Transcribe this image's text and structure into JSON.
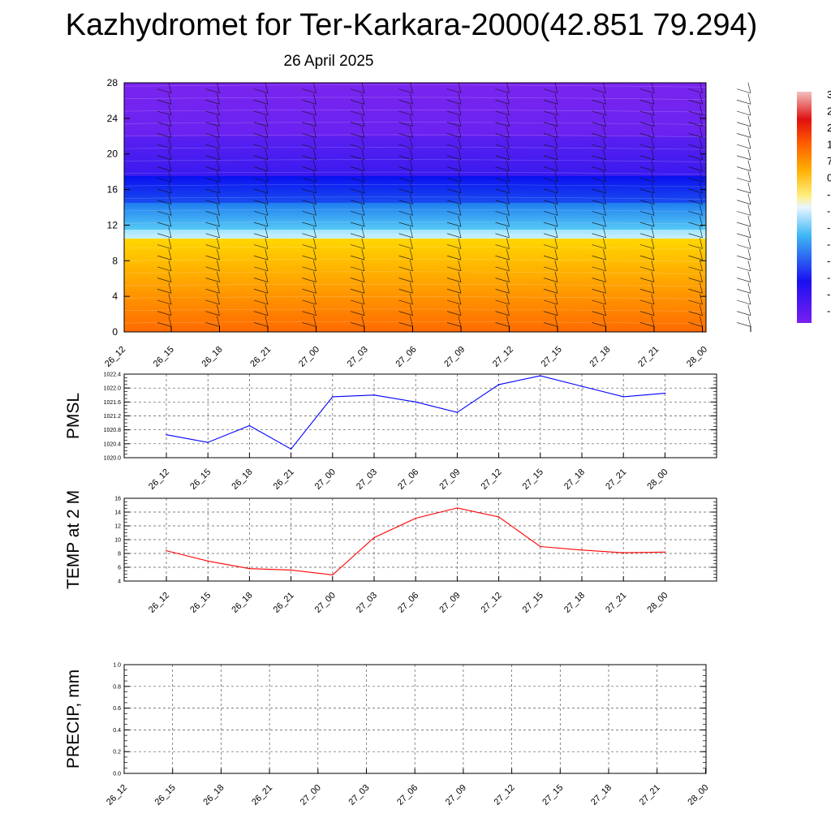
{
  "title": "Kazhydromet for Ter-Karkara-2000(42.851 79.294)",
  "subtitle": "26 April 2025",
  "colorbar_labels": [
    "3",
    "2",
    "2",
    "1",
    "7",
    "0",
    "-",
    "-",
    "-",
    "-",
    "-",
    "-",
    "-",
    "-"
  ],
  "chart_data": [
    {
      "type": "heatmap",
      "title": "",
      "xlabel": "",
      "ylabel": "",
      "x_ticks": [
        "26_12",
        "26_15",
        "26_18",
        "26_21",
        "27_00",
        "27_03",
        "27_06",
        "27_09",
        "27_12",
        "27_15",
        "27_18",
        "27_21",
        "28_00"
      ],
      "y_ticks": [
        0,
        4,
        8,
        12,
        16,
        20,
        24,
        28
      ],
      "ylim": [
        0,
        28
      ],
      "field_bands": [
        {
          "level_from": 0,
          "level_to": 10.5,
          "color_bottom": "#ff6a00",
          "color_top": "#ffd700"
        },
        {
          "level_from": 10.5,
          "level_to": 11.5,
          "color_bottom": "#c8f0ff",
          "color_top": "#a0e4ff"
        },
        {
          "level_from": 11.5,
          "level_to": 14.5,
          "color_bottom": "#55c8f5",
          "color_top": "#1f7df0"
        },
        {
          "level_from": 14.5,
          "level_to": 17.5,
          "color_bottom": "#1a4cf0",
          "color_top": "#0a10f0"
        },
        {
          "level_from": 17.5,
          "level_to": 22,
          "color_bottom": "#3a1af0",
          "color_top": "#5a1ff0"
        },
        {
          "level_from": 22,
          "level_to": 28,
          "color_bottom": "#6a22f0",
          "color_top": "#7a25ef"
        }
      ],
      "wind_barbs": true,
      "legend": "colorbar right"
    },
    {
      "type": "line",
      "title": "",
      "xlabel": "",
      "ylabel": "PMSL",
      "x": [
        "26_12",
        "26_15",
        "26_18",
        "26_21",
        "27_00",
        "27_03",
        "27_06",
        "27_09",
        "27_12",
        "27_15",
        "27_18",
        "27_21",
        "28_00"
      ],
      "series": [
        {
          "color": "#0000ff",
          "values": [
            1020.66,
            1020.44,
            1020.92,
            1020.25,
            1021.75,
            1021.8,
            1021.6,
            1021.3,
            1022.1,
            1022.35,
            1022.05,
            1021.75,
            1021.85
          ]
        }
      ],
      "y_ticks": [
        "1020.0",
        "1020.4",
        "1020.8",
        "1021.2",
        "1021.6",
        "1022.0",
        "1022.4"
      ],
      "ylim": [
        1020.0,
        1022.4
      ],
      "grid": true
    },
    {
      "type": "line",
      "title": "",
      "xlabel": "",
      "ylabel": "TEMP at 2 M",
      "x": [
        "26_12",
        "26_15",
        "26_18",
        "26_21",
        "27_00",
        "27_03",
        "27_06",
        "27_09",
        "27_12",
        "27_15",
        "27_18",
        "27_21",
        "28_00"
      ],
      "series": [
        {
          "color": "#ff0000",
          "values": [
            8.4,
            6.9,
            5.8,
            5.6,
            4.9,
            10.3,
            13.1,
            14.6,
            13.3,
            9.0,
            8.5,
            8.1,
            8.2
          ]
        }
      ],
      "y_ticks": [
        "4",
        "6",
        "8",
        "10",
        "12",
        "14",
        "16"
      ],
      "ylim": [
        4,
        16
      ],
      "grid": true
    },
    {
      "type": "line",
      "title": "",
      "xlabel": "",
      "ylabel": "PRECIP, mm",
      "x": [
        "26_12",
        "26_15",
        "26_18",
        "26_21",
        "27_00",
        "27_03",
        "27_06",
        "27_09",
        "27_12",
        "27_15",
        "27_18",
        "27_21",
        "28_00"
      ],
      "series": [
        {
          "color": "#008000",
          "values": [
            0,
            0,
            0,
            0,
            0,
            0,
            0,
            0,
            0,
            0,
            0,
            0,
            0
          ]
        }
      ],
      "y_ticks": [
        "0.0",
        "0.2",
        "0.4",
        "0.6",
        "0.8",
        "1.0"
      ],
      "ylim": [
        0,
        1.0
      ],
      "grid": true
    }
  ]
}
